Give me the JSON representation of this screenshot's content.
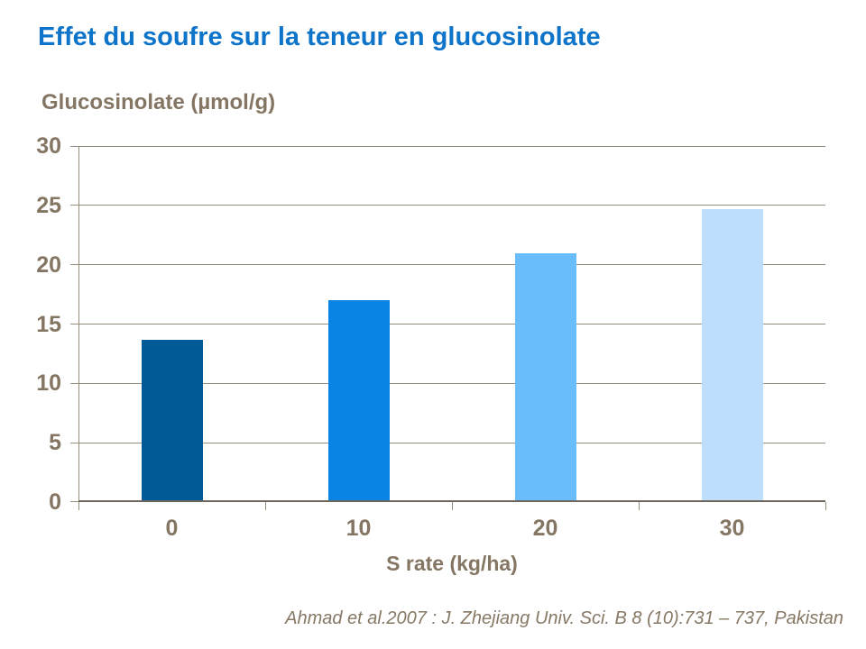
{
  "slide": {
    "title": "Effet du soufre sur la teneur en glucosinolate",
    "citation": "Ahmad et al.2007 : J. Zhejiang Univ. Sci. B 8 (10):731 – 737, Pakistan"
  },
  "chart_data": {
    "type": "bar",
    "title": "Effet du soufre sur la teneur en glucosinolate",
    "y_axis_title": "Glucosinolate (µmol/g)",
    "xlabel": "S rate (kg/ha)",
    "ylabel": "Glucosinolate (µmol/g)",
    "categories": [
      "0",
      "10",
      "20",
      "30"
    ],
    "values": [
      13.6,
      16.9,
      20.9,
      24.6
    ],
    "bar_colors": [
      "#005a96",
      "#0a84e4",
      "#6abdfb",
      "#bedffb"
    ],
    "ylim": [
      0,
      30
    ],
    "yticks": [
      0,
      5,
      10,
      15,
      20,
      25,
      30
    ],
    "grid": true,
    "legend": "none"
  },
  "colors": {
    "title-text": "#0d74c9",
    "label-text": "#847663",
    "gridline": "#958d7b",
    "axis-line": "#6c665c",
    "citation-text": "#867865"
  }
}
